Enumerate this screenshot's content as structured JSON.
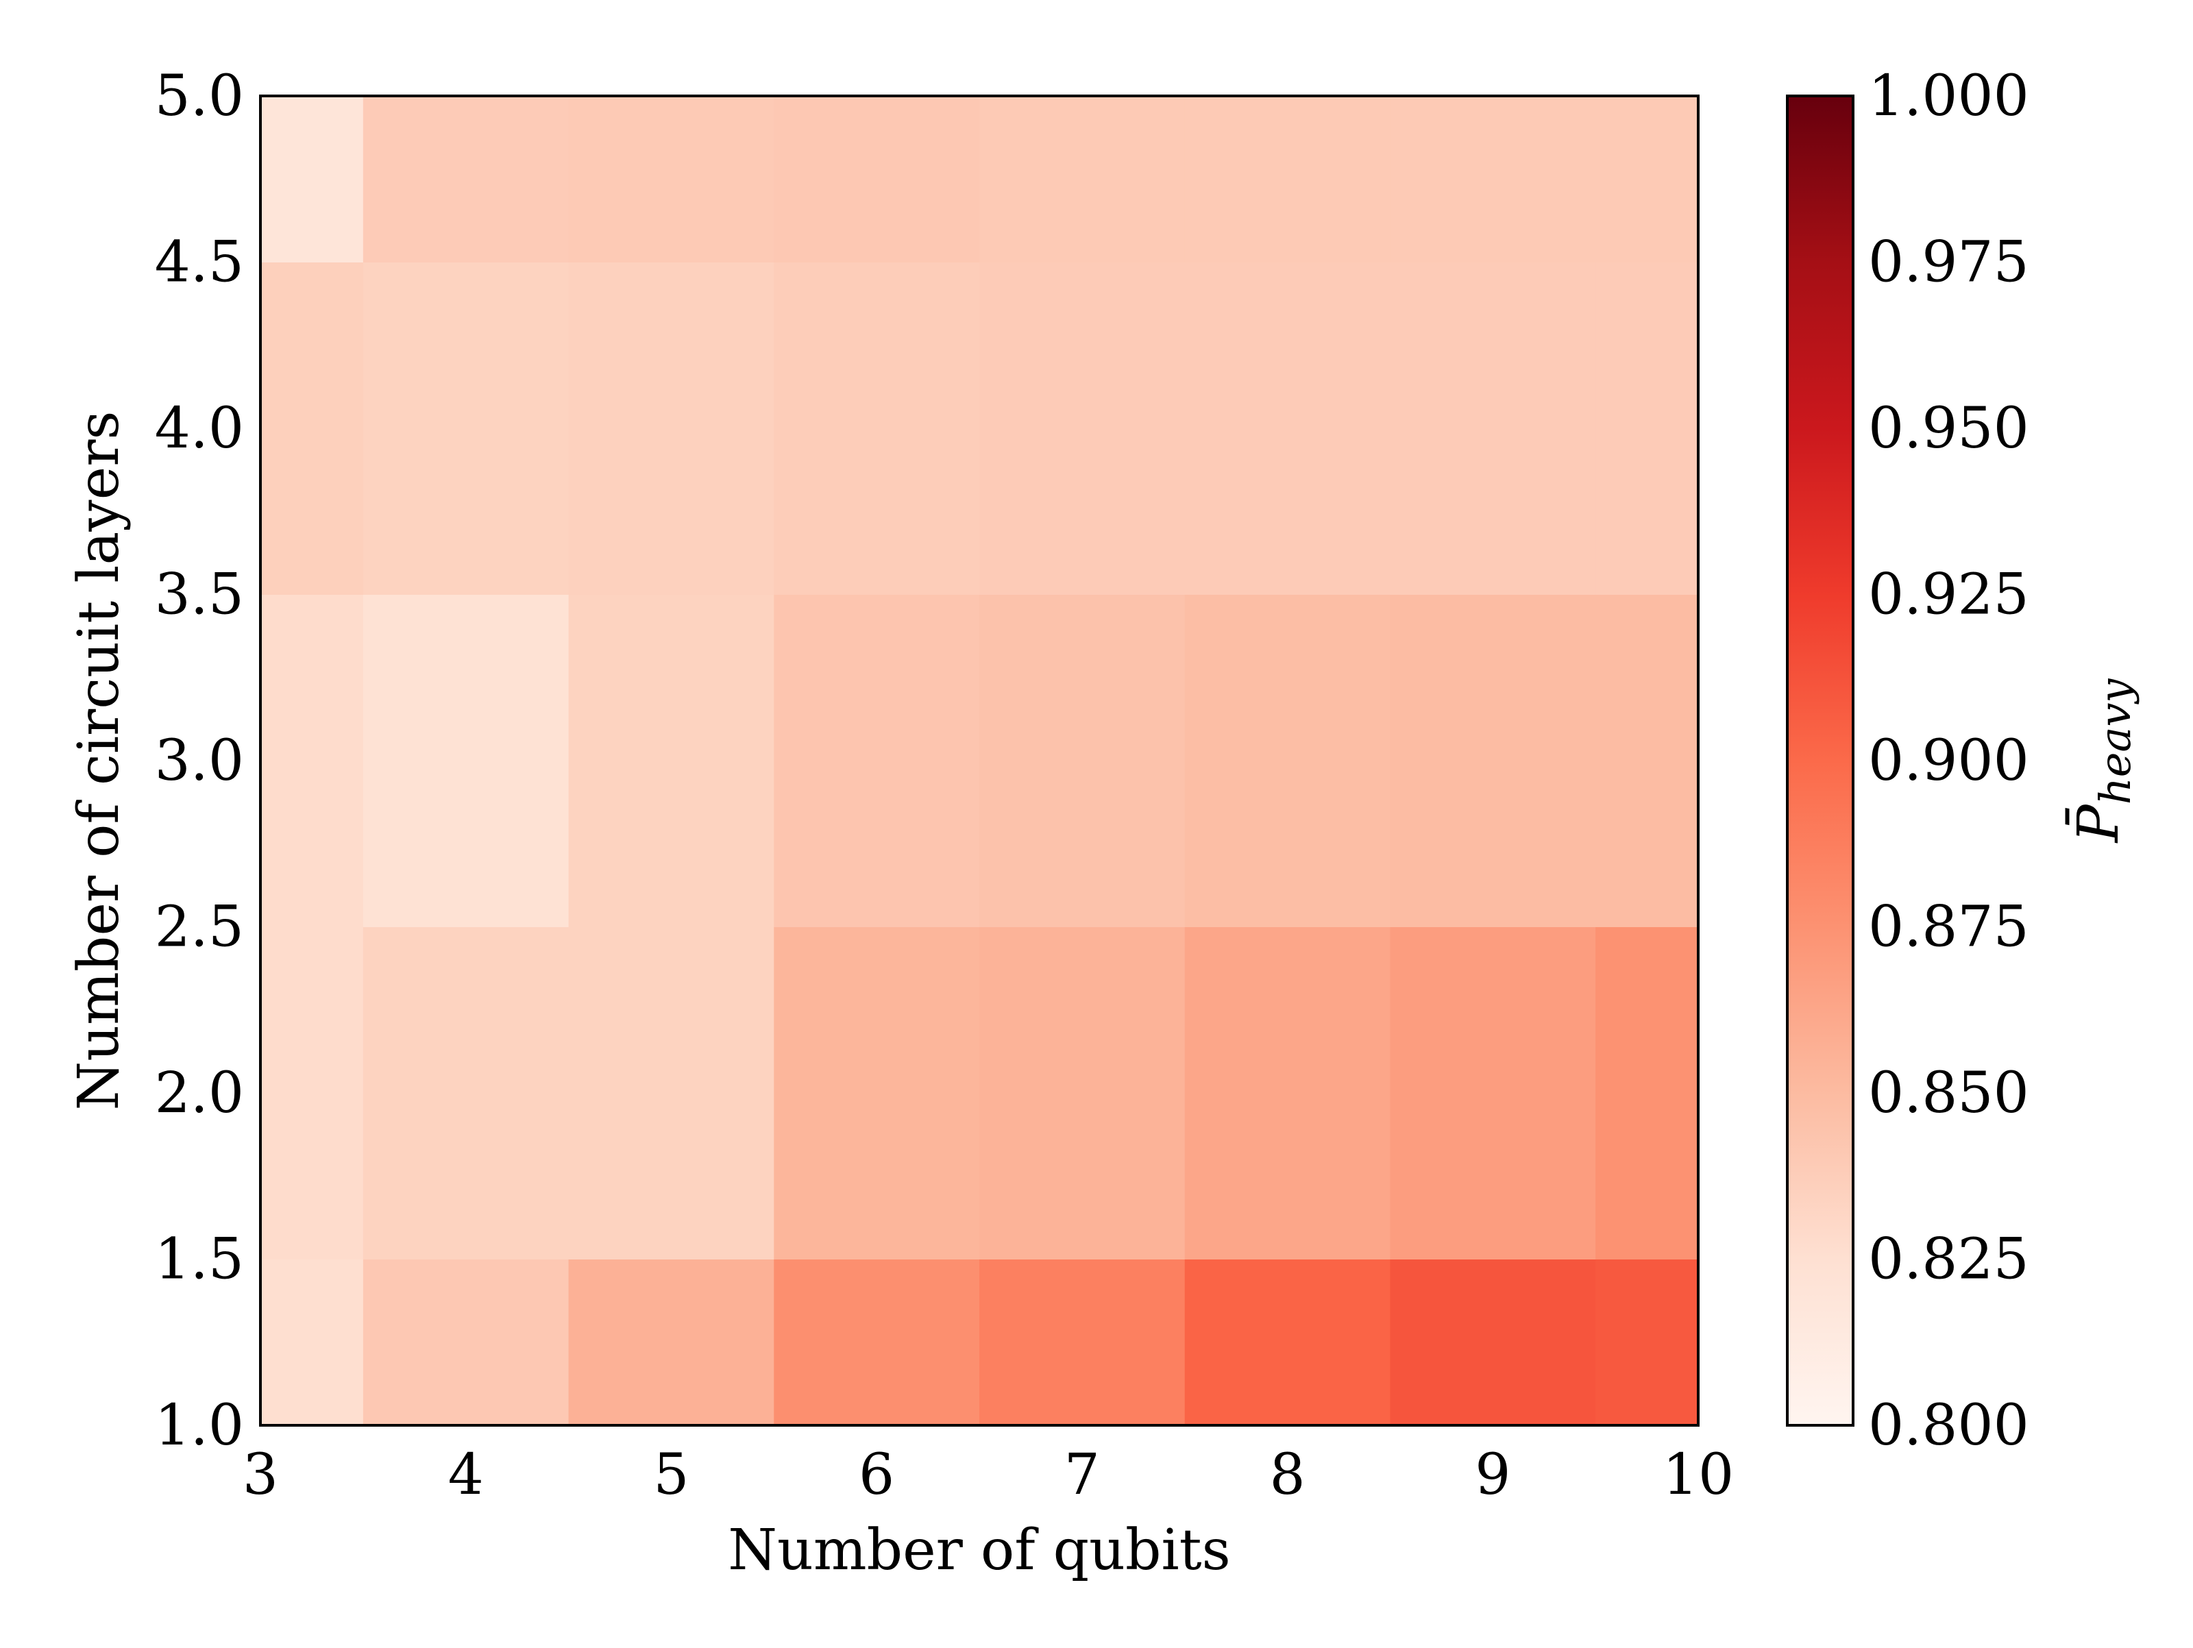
{
  "chart_data": {
    "type": "heatmap",
    "xlabel": "Number of qubits",
    "ylabel": "Number of circuit layers",
    "colorbar_label_main": "P̄",
    "colorbar_label_sub": "heavy",
    "xlim": [
      3,
      10
    ],
    "ylim": [
      1.0,
      5.0
    ],
    "x_ticks": [
      "3",
      "4",
      "5",
      "6",
      "7",
      "8",
      "9",
      "10"
    ],
    "y_ticks": [
      "1.0",
      "1.5",
      "2.0",
      "2.5",
      "3.0",
      "3.5",
      "4.0",
      "4.5",
      "5.0"
    ],
    "x_values": [
      3,
      4,
      5,
      6,
      7,
      8,
      9,
      10
    ],
    "y_values": [
      1,
      2,
      3,
      4,
      5
    ],
    "z": [
      [
        0.826,
        0.841,
        0.856,
        0.877,
        0.886,
        0.903,
        0.911,
        0.909
      ],
      [
        0.828,
        0.834,
        0.834,
        0.853,
        0.855,
        0.863,
        0.868,
        0.875
      ],
      [
        0.828,
        0.823,
        0.834,
        0.843,
        0.845,
        0.848,
        0.849,
        0.849
      ],
      [
        0.836,
        0.834,
        0.835,
        0.838,
        0.839,
        0.839,
        0.839,
        0.839
      ],
      [
        0.819,
        0.839,
        0.84,
        0.841,
        0.84,
        0.84,
        0.84,
        0.84
      ]
    ],
    "colorbar": {
      "min": 0.8,
      "max": 1.0,
      "colormap": "Reds",
      "ticks": [
        "0.800",
        "0.825",
        "0.850",
        "0.875",
        "0.900",
        "0.925",
        "0.950",
        "0.975",
        "1.000"
      ]
    },
    "grid": false
  }
}
